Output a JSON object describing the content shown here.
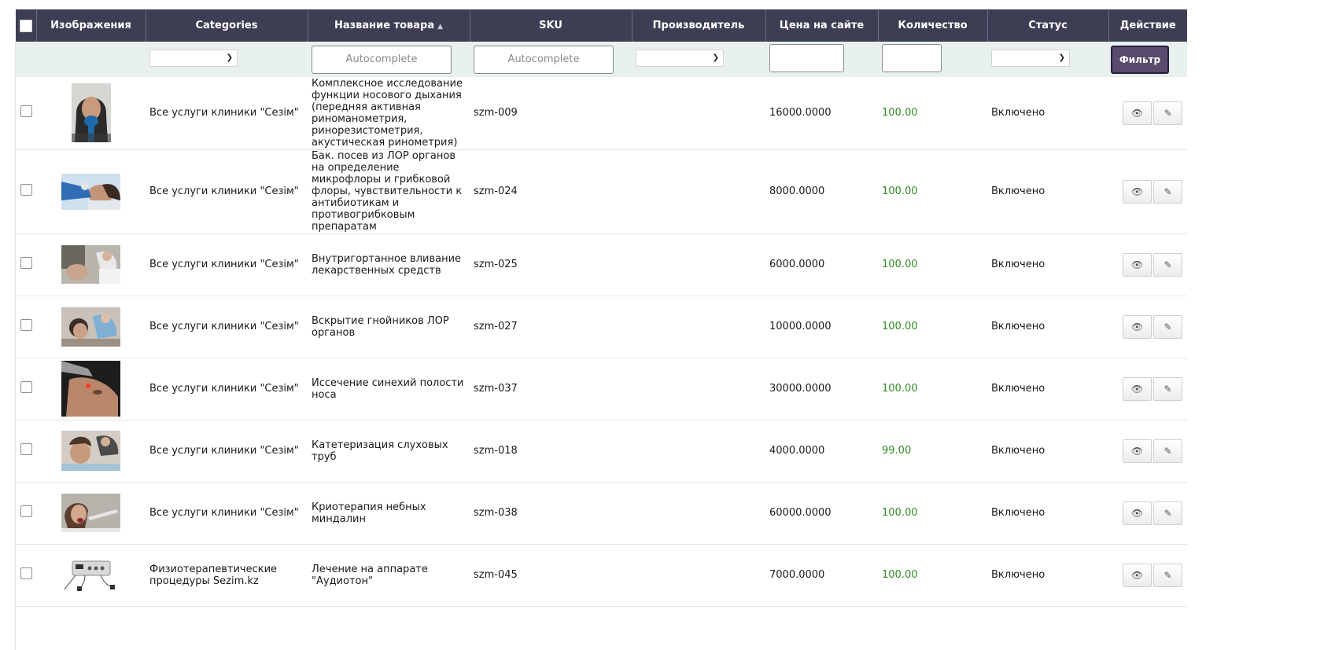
{
  "columns": {
    "images": "Изображения",
    "categories": "Categories",
    "name": "Название товара",
    "sku": "SKU",
    "manufacturer": "Производитель",
    "price": "Цена на сайте",
    "quantity": "Количество",
    "status": "Статус",
    "action": "Действие"
  },
  "filter": {
    "name_placeholder": "Autocomplete",
    "sku_placeholder": "Autocomplete",
    "button": "Фильтр"
  },
  "rows": [
    {
      "category": "Все услуги клиники \"Сезім\"",
      "name": "Комплексное исследование функции носового дыхания (передняя активная риноманометрия, ринорезистометрия, акустическая ринометрия)",
      "sku": "szm-009",
      "price": "16000.0000",
      "quantity": "100.00",
      "status": "Включено"
    },
    {
      "category": "Все услуги клиники \"Сезім\"",
      "name": "Бак. посев из ЛОР органов на определение микрофлоры и грибковой флоры, чувствительности к антибиотикам и противогрибковым препаратам",
      "sku": "szm-024",
      "price": "8000.0000",
      "quantity": "100.00",
      "status": "Включено"
    },
    {
      "category": "Все услуги клиники \"Сезім\"",
      "name": "Внутригортанное вливание лекарственных средств",
      "sku": "szm-025",
      "price": "6000.0000",
      "quantity": "100.00",
      "status": "Включено"
    },
    {
      "category": "Все услуги клиники \"Сезім\"",
      "name": "Вскрытие гнойников ЛОР органов",
      "sku": "szm-027",
      "price": "10000.0000",
      "quantity": "100.00",
      "status": "Включено"
    },
    {
      "category": "Все услуги клиники \"Сезім\"",
      "name": "Иссечение синехий полости носа",
      "sku": "szm-037",
      "price": "30000.0000",
      "quantity": "100.00",
      "status": "Включено"
    },
    {
      "category": "Все услуги клиники \"Сезім\"",
      "name": "Катетеризация слуховых труб",
      "sku": "szm-018",
      "price": "4000.0000",
      "quantity": "99.00",
      "status": "Включено"
    },
    {
      "category": "Все услуги клиники \"Сезім\"",
      "name": "Криотерапия небных миндалин",
      "sku": "szm-038",
      "price": "60000.0000",
      "quantity": "100.00",
      "status": "Включено"
    },
    {
      "category": "Физиотерапевтические процедуры Sezim.kz",
      "name": "Лечение на аппарате \"Аудиотон\"",
      "sku": "szm-045",
      "price": "7000.0000",
      "quantity": "100.00",
      "status": "Включено"
    }
  ],
  "icons": {
    "view": "eye-icon",
    "edit": "pencil-icon"
  },
  "colors": {
    "header_bg": "#3d3d53",
    "filter_bg": "#e8f1ef",
    "filter_button": "#5a4b6c",
    "quantity": "#2e8b22"
  }
}
